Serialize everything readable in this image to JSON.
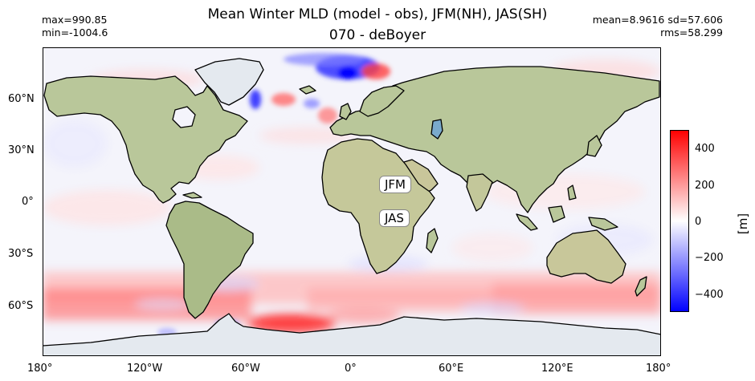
{
  "title_line1": "Mean Winter MLD (model - obs), JFM(NH), JAS(SH)",
  "title_line2": "070 - deBoyer",
  "stats_left": [
    "max=990.85",
    "min=-1004.6"
  ],
  "stats_right": [
    "mean=8.9616  sd=57.606",
    "rms=58.299"
  ],
  "lat_ticks": [
    "60°N",
    "30°N",
    "0°",
    "30°S",
    "60°S"
  ],
  "lon_ticks": [
    "180°",
    "120°W",
    "60°W",
    "0°",
    "60°E",
    "120°E",
    "180°"
  ],
  "map_labels": [
    "JFM",
    "JAS"
  ],
  "colorbar": {
    "label": "[m]",
    "ticks": [
      "400",
      "200",
      "0",
      "−200",
      "−400"
    ],
    "range": [
      -500,
      500
    ],
    "colormap": "bwr",
    "colors": {
      "low": "#0000ff",
      "mid": "#ffffff",
      "high": "#ff0000"
    }
  },
  "colors": {
    "land": "#b9c79a",
    "ice": "#e4e9ef",
    "ocean_base": "#f4f4fb",
    "coast": "#000000"
  }
}
